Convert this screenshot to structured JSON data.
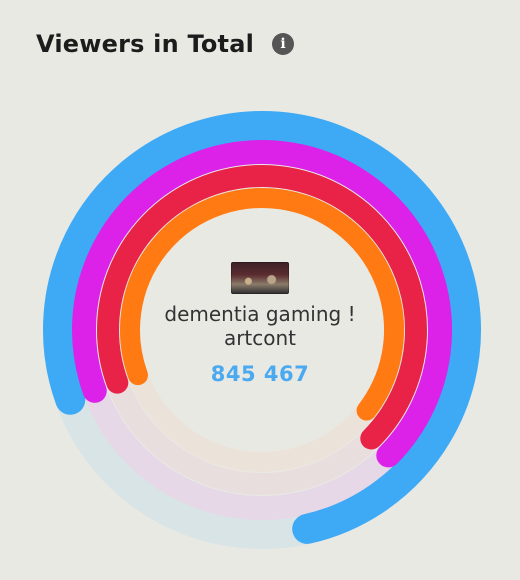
{
  "header": {
    "title": "Viewers in Total",
    "info_icon": "info-icon"
  },
  "center": {
    "thumbnail_icon": "stream-thumbnail",
    "line1": "dementia gaming !",
    "line2": "artcont",
    "value": "845 467"
  },
  "chart_data": {
    "type": "radial-bar",
    "series": [
      {
        "color": "#3ea9f5",
        "track_color": "#d8e4e6",
        "fraction": 0.77
      },
      {
        "color": "#dc22e8",
        "track_color": "#e6d8e6",
        "fraction": 0.68
      },
      {
        "color": "#e82347",
        "track_color": "#e8dede",
        "fraction": 0.68
      },
      {
        "color": "#ff7a12",
        "track_color": "#ebe3d9",
        "fraction": 0.66
      }
    ]
  }
}
